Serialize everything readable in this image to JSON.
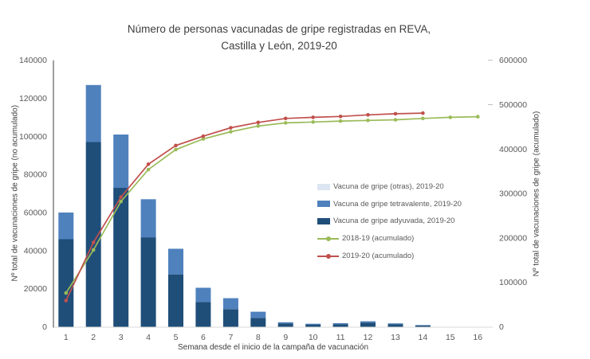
{
  "title": {
    "line1": "Número de personas vacunadas de gripe registradas en REVA,",
    "line2": "Castilla y León, 2019-20"
  },
  "chart_data": {
    "type": "combo: stacked bar + line, dual y-axis",
    "x": [
      1,
      2,
      3,
      4,
      5,
      6,
      7,
      8,
      9,
      10,
      11,
      12,
      13,
      14,
      15,
      16
    ],
    "xlabel": "Semana desde el inicio de la campaña de vacunación",
    "left_axis": {
      "label": "Nº total de vacunaciones de gripe (no acumulado)",
      "min": 0,
      "max": 140000,
      "ticks": [
        0,
        20000,
        40000,
        60000,
        80000,
        100000,
        120000,
        140000
      ]
    },
    "right_axis": {
      "label": "Nº total de vacunaciones de gripe (acumulado)",
      "min": 0,
      "max": 600000,
      "ticks": [
        0,
        100000,
        200000,
        300000,
        400000,
        500000,
        600000
      ],
      "tick_marks": [
        500000,
        600000
      ]
    },
    "bar_series": [
      {
        "name": "Vacuna de gripe adyuvada, 2019-20",
        "color": "#1f4e79",
        "values": [
          46000,
          97000,
          73000,
          47000,
          27500,
          13000,
          9300,
          4700,
          1800,
          1200,
          1400,
          2200,
          1400,
          700,
          0,
          0
        ]
      },
      {
        "name": "Vacuna de gripe tetravalente, 2019-20",
        "color": "#4f81bd",
        "values": [
          14000,
          30000,
          28000,
          20000,
          13500,
          7500,
          5700,
          3200,
          600,
          400,
          500,
          700,
          400,
          200,
          0,
          0
        ]
      },
      {
        "name": "Vacuna de gripe (otras), 2019-20",
        "color": "#dce6f2",
        "values": [
          0,
          0,
          0,
          0,
          0,
          0,
          0,
          0,
          0,
          0,
          0,
          0,
          0,
          0,
          0,
          0
        ]
      }
    ],
    "line_series": [
      {
        "name": "2018-19 (acumulado)",
        "color": "#9bbb59",
        "values": [
          76000,
          173000,
          282000,
          354000,
          399000,
          423000,
          439000,
          452000,
          459000,
          461000,
          463000,
          464500,
          466000,
          469000,
          471500,
          473000
        ]
      },
      {
        "name": "2019-20 (acumulado)",
        "color": "#c0504d",
        "values": [
          59000,
          190000,
          292000,
          366000,
          408000,
          429000,
          448000,
          460000,
          469000,
          471500,
          473500,
          477000,
          479500,
          481000,
          null,
          null
        ]
      }
    ],
    "legend": [
      {
        "label": "Vacuna de gripe (otras), 2019-20",
        "color": "#dce6f2",
        "type": "box"
      },
      {
        "label": "Vacuna de gripe tetravalente, 2019-20",
        "color": "#4f81bd",
        "type": "box"
      },
      {
        "label": "Vacuna de gripe adyuvada, 2019-20",
        "color": "#1f4e79",
        "type": "box"
      },
      {
        "label": "2018-19 (acumulado)",
        "color": "#9bbb59",
        "type": "line"
      },
      {
        "label": "2019-20 (acumulado)",
        "color": "#c0504d",
        "type": "line"
      }
    ],
    "layout": {
      "grid": false,
      "legend_position": "inside right",
      "left_axis_color": "#3f3f3f",
      "x_axis_color": "#d9d9d9",
      "tick_label_color": "#595959"
    }
  }
}
